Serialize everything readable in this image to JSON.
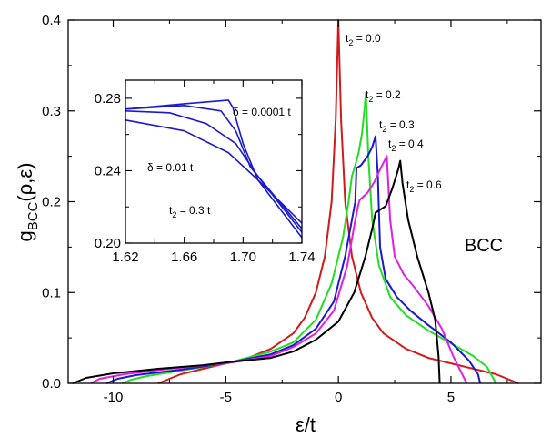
{
  "chart_data": [
    {
      "type": "line",
      "xlabel": "ε/t",
      "ylabel_main": "g",
      "ylabel_sub": "BCC",
      "ylabel_args": "(ρ,ε)",
      "annotation": "BCC",
      "xlim": [
        -12,
        9
      ],
      "ylim": [
        0,
        0.4
      ],
      "xticks": [
        -10,
        -5,
        0,
        5
      ],
      "yticks": [
        0.0,
        0.1,
        0.2,
        0.3,
        0.4
      ],
      "ytick_labels": [
        "0.0",
        "0.1",
        "0.2",
        "0.3",
        "0.4"
      ],
      "series": [
        {
          "name": "t2 = 0.0",
          "label_main": "t",
          "label_sub": "2",
          "label_rest": " = 0.0",
          "color": "#d11a1a",
          "points": [
            [
              -8.0,
              0.0
            ],
            [
              -7.6,
              0.004
            ],
            [
              -7.0,
              0.01
            ],
            [
              -6.0,
              0.016
            ],
            [
              -5.0,
              0.022
            ],
            [
              -4.0,
              0.028
            ],
            [
              -3.0,
              0.038
            ],
            [
              -2.0,
              0.055
            ],
            [
              -1.5,
              0.072
            ],
            [
              -1.0,
              0.1
            ],
            [
              -0.6,
              0.14
            ],
            [
              -0.3,
              0.2
            ],
            [
              -0.12,
              0.29
            ],
            [
              0.0,
              0.4
            ],
            [
              0.12,
              0.29
            ],
            [
              0.3,
              0.2
            ],
            [
              0.6,
              0.14
            ],
            [
              1.0,
              0.1
            ],
            [
              1.5,
              0.072
            ],
            [
              2.0,
              0.055
            ],
            [
              3.0,
              0.038
            ],
            [
              4.0,
              0.028
            ],
            [
              5.0,
              0.022
            ],
            [
              6.0,
              0.016
            ],
            [
              7.0,
              0.01
            ],
            [
              7.6,
              0.004
            ],
            [
              8.0,
              0.0
            ]
          ]
        },
        {
          "name": "t2 = 0.2",
          "label_main": "t",
          "label_sub": "2",
          "label_rest": " = 0.2",
          "color": "#22dd22",
          "points": [
            [
              -9.6,
              0.0
            ],
            [
              -9.2,
              0.004
            ],
            [
              -8.5,
              0.008
            ],
            [
              -7.0,
              0.014
            ],
            [
              -5.0,
              0.022
            ],
            [
              -3.0,
              0.035
            ],
            [
              -2.0,
              0.045
            ],
            [
              -1.0,
              0.07
            ],
            [
              -0.3,
              0.11
            ],
            [
              0.2,
              0.16
            ],
            [
              0.45,
              0.2
            ],
            [
              0.6,
              0.228
            ],
            [
              0.75,
              0.24
            ],
            [
              0.9,
              0.254
            ],
            [
              1.05,
              0.275
            ],
            [
              1.15,
              0.3
            ],
            [
              1.22,
              0.32
            ],
            [
              1.33,
              0.25
            ],
            [
              1.5,
              0.18
            ],
            [
              1.8,
              0.13
            ],
            [
              2.3,
              0.095
            ],
            [
              3.0,
              0.075
            ],
            [
              4.0,
              0.058
            ],
            [
              5.0,
              0.044
            ],
            [
              6.0,
              0.03
            ],
            [
              6.6,
              0.018
            ],
            [
              7.0,
              0.0
            ]
          ]
        },
        {
          "name": "t2 = 0.3",
          "label_main": "t",
          "label_sub": "2",
          "label_rest": " = 0.3",
          "color": "#1a1acc",
          "points": [
            [
              -10.3,
              0.0
            ],
            [
              -9.8,
              0.005
            ],
            [
              -9.0,
              0.009
            ],
            [
              -7.0,
              0.015
            ],
            [
              -5.0,
              0.022
            ],
            [
              -3.0,
              0.032
            ],
            [
              -2.0,
              0.042
            ],
            [
              -1.0,
              0.06
            ],
            [
              -0.2,
              0.09
            ],
            [
              0.3,
              0.14
            ],
            [
              0.6,
              0.18
            ],
            [
              0.75,
              0.2
            ],
            [
              0.8,
              0.237
            ],
            [
              1.0,
              0.24
            ],
            [
              1.3,
              0.25
            ],
            [
              1.5,
              0.26
            ],
            [
              1.65,
              0.272
            ],
            [
              1.75,
              0.23
            ],
            [
              1.85,
              0.15
            ],
            [
              2.1,
              0.115
            ],
            [
              2.6,
              0.095
            ],
            [
              3.2,
              0.08
            ],
            [
              4.0,
              0.064
            ],
            [
              5.0,
              0.045
            ],
            [
              5.8,
              0.025
            ],
            [
              6.2,
              0.01
            ],
            [
              6.3,
              0.0
            ]
          ]
        },
        {
          "name": "t2 = 0.4",
          "label_main": "t",
          "label_sub": "2",
          "label_rest": " = 0.4",
          "color": "#e020e0",
          "points": [
            [
              -11.0,
              0.0
            ],
            [
              -10.6,
              0.005
            ],
            [
              -9.5,
              0.01
            ],
            [
              -7.5,
              0.016
            ],
            [
              -5.0,
              0.022
            ],
            [
              -3.0,
              0.03
            ],
            [
              -2.0,
              0.04
            ],
            [
              -1.0,
              0.055
            ],
            [
              -0.2,
              0.08
            ],
            [
              0.4,
              0.13
            ],
            [
              0.75,
              0.18
            ],
            [
              0.9,
              0.198
            ],
            [
              0.95,
              0.202
            ],
            [
              1.3,
              0.21
            ],
            [
              1.6,
              0.222
            ],
            [
              1.9,
              0.238
            ],
            [
              2.15,
              0.25
            ],
            [
              2.3,
              0.18
            ],
            [
              2.5,
              0.14
            ],
            [
              2.9,
              0.12
            ],
            [
              3.4,
              0.105
            ],
            [
              4.0,
              0.085
            ],
            [
              4.6,
              0.06
            ],
            [
              5.1,
              0.03
            ],
            [
              5.6,
              0.005
            ],
            [
              5.7,
              0.0
            ]
          ]
        },
        {
          "name": "t2 = 0.6",
          "label_main": "t",
          "label_sub": "2",
          "label_rest": " = 0.6",
          "color": "#000000",
          "points": [
            [
              -11.8,
              0.0
            ],
            [
              -11.2,
              0.006
            ],
            [
              -10.0,
              0.011
            ],
            [
              -8.0,
              0.016
            ],
            [
              -6.0,
              0.02
            ],
            [
              -5.0,
              0.023
            ],
            [
              -3.0,
              0.028
            ],
            [
              -2.0,
              0.035
            ],
            [
              -1.0,
              0.048
            ],
            [
              0.0,
              0.068
            ],
            [
              0.7,
              0.1
            ],
            [
              1.2,
              0.14
            ],
            [
              1.5,
              0.17
            ],
            [
              1.6,
              0.182
            ],
            [
              1.65,
              0.188
            ],
            [
              2.1,
              0.195
            ],
            [
              2.4,
              0.215
            ],
            [
              2.65,
              0.235
            ],
            [
              2.75,
              0.245
            ],
            [
              2.85,
              0.22
            ],
            [
              3.1,
              0.18
            ],
            [
              3.5,
              0.14
            ],
            [
              4.0,
              0.1
            ],
            [
              4.3,
              0.07
            ],
            [
              4.45,
              0.03
            ],
            [
              4.5,
              0.0
            ]
          ]
        }
      ]
    },
    {
      "type": "line",
      "xlim": [
        1.62,
        1.74
      ],
      "ylim": [
        0.2,
        0.29
      ],
      "xticks": [
        1.62,
        1.66,
        1.7,
        1.74
      ],
      "xtick_labels": [
        "1.62",
        "1.66",
        "1.70",
        "1.74"
      ],
      "yticks": [
        0.2,
        0.24,
        0.28
      ],
      "ytick_labels": [
        "0.20",
        "0.24",
        "0.28"
      ],
      "annotations": {
        "delta_small": "δ = 0.0001 t",
        "delta_large": "δ = 0.01 t",
        "t2_main": "t",
        "t2_sub": "2",
        "t2_rest": " = 0.3 t"
      },
      "color": "#1a1acc",
      "series": [
        {
          "points": [
            [
              1.62,
              0.268
            ],
            [
              1.66,
              0.262
            ],
            [
              1.69,
              0.25
            ],
            [
              1.71,
              0.235
            ],
            [
              1.74,
              0.203
            ]
          ]
        },
        {
          "points": [
            [
              1.62,
              0.273
            ],
            [
              1.65,
              0.272
            ],
            [
              1.675,
              0.266
            ],
            [
              1.695,
              0.255
            ],
            [
              1.71,
              0.237
            ],
            [
              1.74,
              0.206
            ]
          ]
        },
        {
          "points": [
            [
              1.62,
              0.274
            ],
            [
              1.66,
              0.276
            ],
            [
              1.685,
              0.273
            ],
            [
              1.695,
              0.262
            ],
            [
              1.705,
              0.242
            ],
            [
              1.74,
              0.208
            ]
          ]
        },
        {
          "points": [
            [
              1.62,
              0.274
            ],
            [
              1.66,
              0.277
            ],
            [
              1.69,
              0.279
            ],
            [
              1.693,
              0.275
            ],
            [
              1.7,
              0.255
            ],
            [
              1.71,
              0.235
            ],
            [
              1.74,
              0.211
            ]
          ]
        }
      ]
    }
  ]
}
